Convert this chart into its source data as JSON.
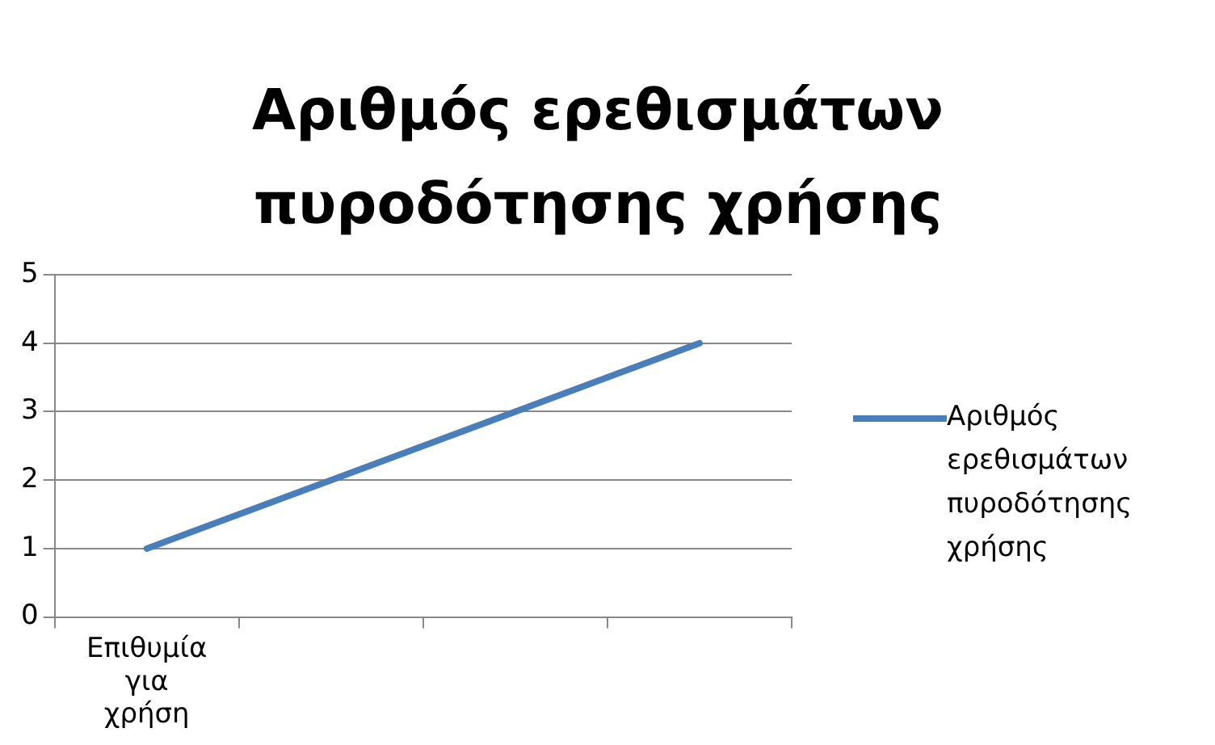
{
  "chart_data": {
    "type": "line",
    "title": "Αριθμός ερεθισμάτων πυροδότησης χρήσης",
    "categories": [
      "Επιθυμία για χρήση",
      null,
      null,
      null
    ],
    "series": [
      {
        "name": "Αριθμός ερεθισμάτων πυροδότησης χρήσης",
        "color": "#4a7ebb",
        "values": [
          1,
          2,
          3,
          4
        ]
      }
    ],
    "ylim": [
      0,
      5
    ],
    "yticks": [
      0,
      1,
      2,
      3,
      4,
      5
    ],
    "grid": "y",
    "legend": "right",
    "marker": "none"
  }
}
